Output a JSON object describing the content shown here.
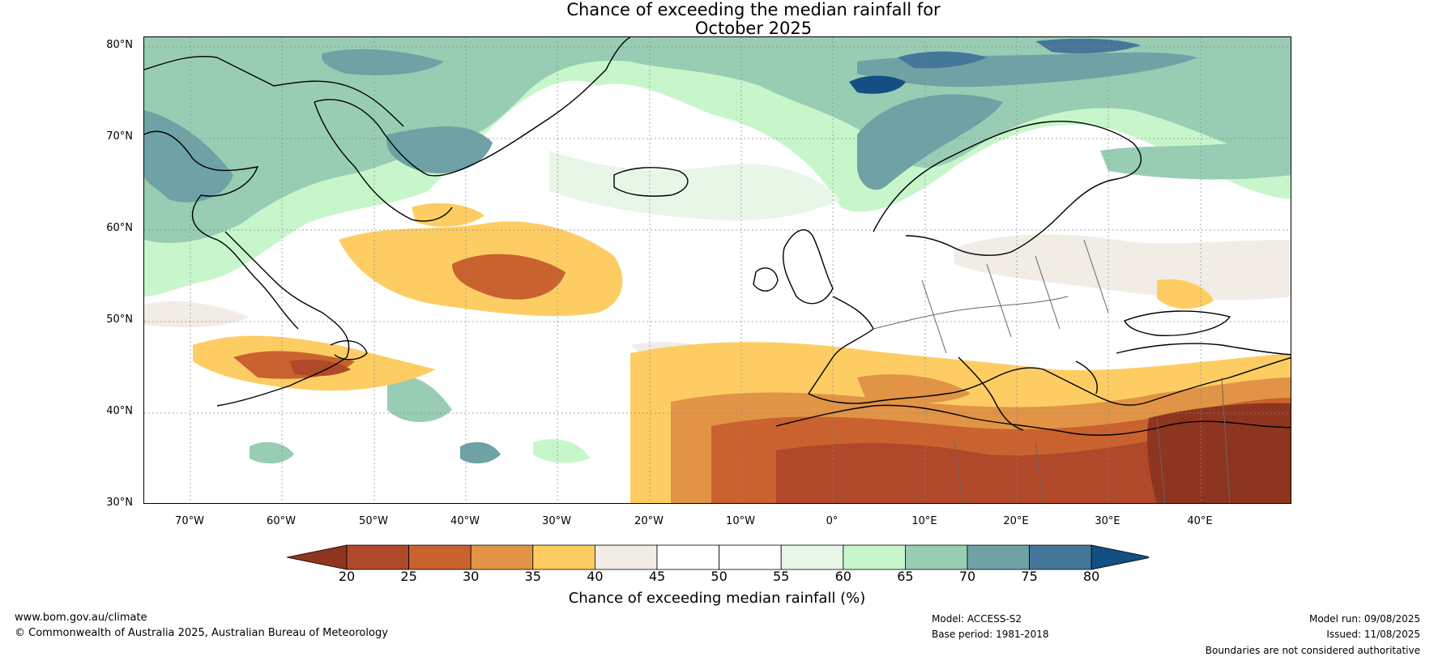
{
  "title_line1": "Chance of exceeding the median rainfall for",
  "title_line2": "October 2025",
  "lat_labels": [
    "80°N",
    "70°N",
    "60°N",
    "50°N",
    "40°N",
    "30°N"
  ],
  "lon_labels": [
    "70°W",
    "60°W",
    "50°W",
    "40°W",
    "30°W",
    "20°W",
    "10°W",
    "0°",
    "10°E",
    "20°E",
    "30°E",
    "40°E"
  ],
  "colorbar": {
    "ticks": [
      "20",
      "25",
      "30",
      "35",
      "40",
      "45",
      "50",
      "55",
      "60",
      "65",
      "70",
      "75",
      "80"
    ],
    "colors": [
      "#8e3520",
      "#b0482a",
      "#c9622f",
      "#e19445",
      "#fdcd64",
      "#f1ece6",
      "#ffffff",
      "#ffffff",
      "#e8f6e8",
      "#c7f6cb",
      "#98cdb4",
      "#6ea2a5",
      "#44779a",
      "#134f83"
    ],
    "label": "Chance of exceeding median rainfall (%)"
  },
  "footer": {
    "website": "www.bom.gov.au/climate",
    "copyright": "© Commonwealth of Australia 2025, Australian Bureau of Meteorology",
    "model": "Model: ACCESS-S2",
    "base_period": "Base period: 1981-2018",
    "model_run": "Model run: 09/08/2025",
    "issued": "Issued: 11/08/2025",
    "disclaimer": "Boundaries are not considered authoritative"
  }
}
